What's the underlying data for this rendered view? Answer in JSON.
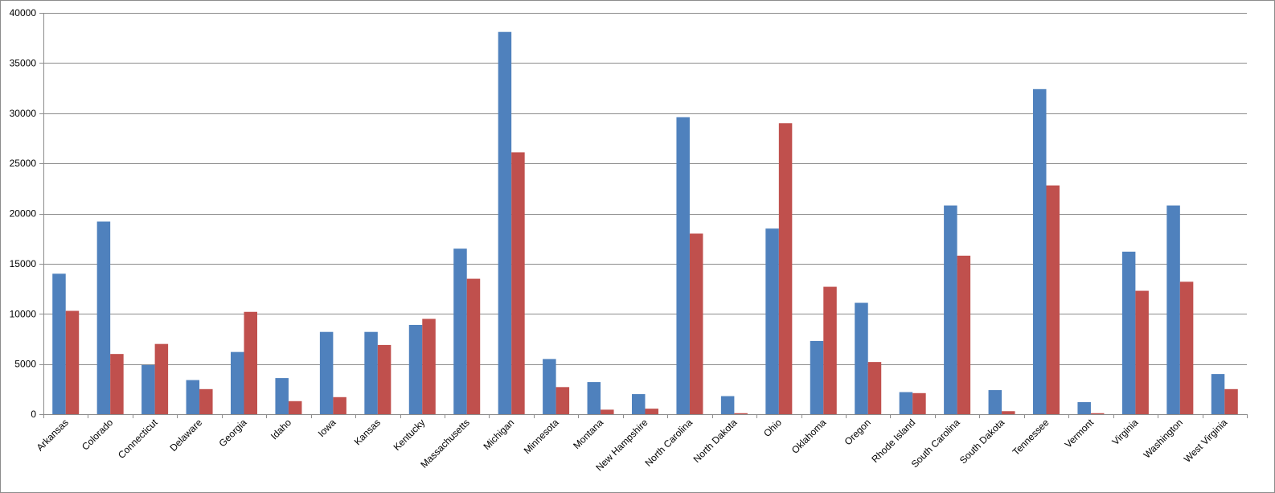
{
  "chart_data": {
    "type": "bar",
    "title": "",
    "xlabel": "",
    "ylabel": "",
    "ylim": [
      0,
      40000
    ],
    "yticks": [
      0,
      5000,
      10000,
      15000,
      20000,
      25000,
      30000,
      35000,
      40000
    ],
    "grid": true,
    "legend": "none",
    "categories": [
      "Arkansas",
      "Colorado",
      "Connecticut",
      "Delaware",
      "Georgia",
      "Idaho",
      "Iowa",
      "Kansas",
      "Kentucky",
      "Massachusetts",
      "Michigan",
      "Minnesota",
      "Montana",
      "New Hampshire",
      "North Carolina",
      "North Dakota",
      "Ohio",
      "Oklahoma",
      "Oregon",
      "Rhode Island",
      "South Carolina",
      "South Dakota",
      "Tennessee",
      "Vermont",
      "Virginia",
      "Washington",
      "West Virginia"
    ],
    "series": [
      {
        "color": "#4f81bd",
        "values": [
          14000,
          19200,
          4900,
          3400,
          6200,
          3600,
          8200,
          8200,
          8900,
          16500,
          38100,
          5500,
          3200,
          2000,
          29600,
          1800,
          18500,
          7300,
          11100,
          2200,
          20800,
          2400,
          32400,
          1200,
          16200,
          20800,
          4000
        ]
      },
      {
        "color": "#c0504d",
        "values": [
          10300,
          6000,
          7000,
          2500,
          10200,
          1300,
          1700,
          6900,
          9500,
          13500,
          26100,
          2700,
          450,
          550,
          18000,
          100,
          29000,
          12700,
          5200,
          2100,
          15800,
          300,
          22800,
          100,
          12300,
          13200,
          2500
        ]
      }
    ]
  }
}
